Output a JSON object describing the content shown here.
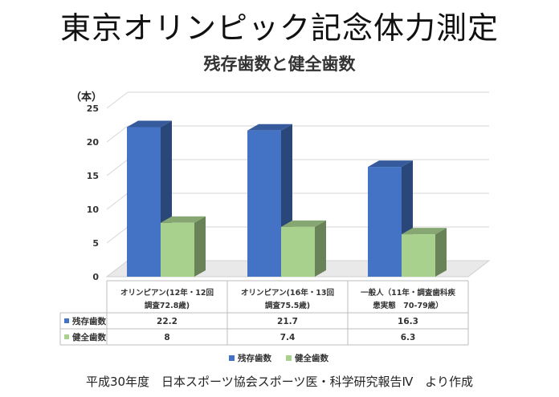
{
  "page": {
    "main_title": "東京オリンピック記念体力測定",
    "source_note": "平成30年度　日本スポーツ協会スポーツ医・科学研究報告Ⅳ　より作成"
  },
  "chart_data": {
    "type": "bar",
    "title": "残存歯数と健全歯数",
    "ylabel": "（本）",
    "xlabel": "",
    "ylim": [
      0,
      25
    ],
    "yticks": [
      0,
      5,
      10,
      15,
      20,
      25
    ],
    "grid": true,
    "legend_placement": "bottom",
    "categories": [
      {
        "line1": "オリンピアン(12年・12回",
        "line2": "調査72.8歳)"
      },
      {
        "line1": "オリンピアン(16年・13回",
        "line2": "調査75.5歳)"
      },
      {
        "line1": "一般人（11年・調査歯科疾",
        "line2": "患実態　70-79歳）"
      }
    ],
    "series": [
      {
        "name": "残存歯数",
        "values": [
          22.2,
          21.7,
          16.3
        ],
        "value_labels": [
          "22.2",
          "21.7",
          "16.3"
        ],
        "color": "#4472C4"
      },
      {
        "name": "健全歯数",
        "values": [
          8,
          7.4,
          6.3
        ],
        "value_labels": [
          "8",
          "7.4",
          "6.3"
        ],
        "color": "#A9D18E"
      }
    ]
  }
}
